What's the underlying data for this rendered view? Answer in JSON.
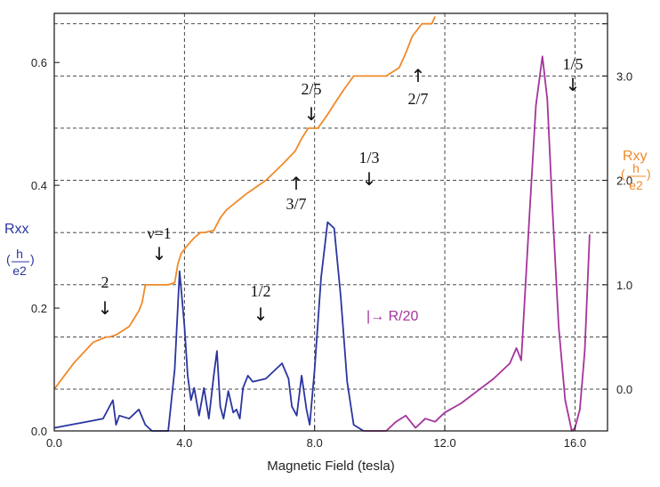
{
  "chart_data": {
    "type": "line",
    "xlabel": "Magnetic Field (tesla)",
    "xlim": [
      0,
      17
    ],
    "x_ticks": [
      "0.0",
      "4.0",
      "8.0",
      "12.0",
      "16.0"
    ],
    "left_axis": {
      "label": "Rxx",
      "unit_num": "h",
      "unit_den": "e2",
      "ylim": [
        0,
        0.68
      ],
      "ticks": [
        "0.0",
        "0.2",
        "0.4",
        "0.6"
      ],
      "color": "#2a35a0"
    },
    "right_axis": {
      "label": "Rxy",
      "unit_num": "h",
      "unit_den": "e2",
      "ylim": [
        -0.4,
        3.6
      ],
      "ticks": [
        "0.0",
        "1.0",
        "2.0",
        "3.0"
      ],
      "color": "#f08a2a"
    },
    "grid": "dashed",
    "series": [
      {
        "name": "Rxy",
        "axis": "right",
        "color": "#f08a2a",
        "x": [
          0,
          0.6,
          1.2,
          1.6,
          1.7,
          1.9,
          2.3,
          2.5,
          2.6,
          2.7,
          2.8,
          2.9,
          3.1,
          3.5,
          3.7,
          3.8,
          3.9,
          4.1,
          4.3,
          4.5,
          4.6,
          4.9,
          5.1,
          5.3,
          5.9,
          6.5,
          7.0,
          7.4,
          7.6,
          7.8,
          8.1,
          8.4,
          8.6,
          8.9,
          9.2,
          9.5,
          9.8,
          10.2,
          10.6,
          10.8,
          11.0,
          11.3,
          11.6,
          11.7
        ],
        "y": [
          0.0,
          0.25,
          0.45,
          0.5,
          0.5,
          0.52,
          0.6,
          0.7,
          0.75,
          0.83,
          1.0,
          1.0,
          1.0,
          1.0,
          1.02,
          1.2,
          1.3,
          1.38,
          1.45,
          1.5,
          1.5,
          1.52,
          1.64,
          1.72,
          1.87,
          2.0,
          2.15,
          2.28,
          2.4,
          2.5,
          2.5,
          2.63,
          2.73,
          2.87,
          3.0,
          3.0,
          3.0,
          3.0,
          3.08,
          3.22,
          3.38,
          3.5,
          3.5,
          3.57
        ]
      },
      {
        "name": "Rxx",
        "axis": "left",
        "color": "#2a35a0",
        "x": [
          0,
          0.5,
          1.0,
          1.5,
          1.8,
          1.9,
          2.0,
          2.3,
          2.6,
          2.8,
          3.0,
          3.5,
          3.7,
          3.85,
          4.0,
          4.1,
          4.2,
          4.3,
          4.45,
          4.6,
          4.75,
          4.9,
          5.0,
          5.1,
          5.2,
          5.35,
          5.5,
          5.6,
          5.7,
          5.8,
          5.95,
          6.1,
          6.5,
          7.0,
          7.2,
          7.3,
          7.45,
          7.6,
          7.75,
          7.85,
          8.0,
          8.2,
          8.4,
          8.6,
          8.8,
          9.0,
          9.2,
          9.5
        ],
        "y": [
          0.005,
          0.01,
          0.015,
          0.02,
          0.05,
          0.01,
          0.025,
          0.02,
          0.035,
          0.01,
          0.0,
          0.0,
          0.1,
          0.26,
          0.17,
          0.09,
          0.05,
          0.07,
          0.025,
          0.07,
          0.02,
          0.09,
          0.13,
          0.04,
          0.02,
          0.065,
          0.03,
          0.035,
          0.02,
          0.07,
          0.09,
          0.08,
          0.085,
          0.11,
          0.085,
          0.04,
          0.025,
          0.09,
          0.035,
          0.01,
          0.1,
          0.25,
          0.34,
          0.33,
          0.22,
          0.08,
          0.01,
          0.0
        ]
      },
      {
        "name": "Rxx/20",
        "axis": "left",
        "color": "#a5339b",
        "x": [
          9.5,
          10.2,
          10.5,
          10.8,
          11.1,
          11.4,
          11.7,
          12.0,
          12.5,
          13.0,
          13.5,
          14.0,
          14.2,
          14.35,
          14.6,
          14.8,
          15.0,
          15.15,
          15.3,
          15.5,
          15.7,
          15.9,
          16.0,
          16.15,
          16.3,
          16.45
        ],
        "y": [
          0.0,
          0.0,
          0.015,
          0.025,
          0.005,
          0.02,
          0.015,
          0.03,
          0.045,
          0.065,
          0.085,
          0.11,
          0.135,
          0.115,
          0.35,
          0.53,
          0.61,
          0.54,
          0.37,
          0.17,
          0.05,
          0.0,
          0.005,
          0.035,
          0.13,
          0.32
        ]
      }
    ],
    "annotations": {
      "nu1": "ν=1",
      "two": "2",
      "half": "1/2",
      "two_fifths": "2/5",
      "three_sevenths": "3/7",
      "one_third": "1/3",
      "two_sevenths": "2/7",
      "one_fifth": "1/5",
      "scale_note": "|→ R/20"
    },
    "arrows": {
      "down": "↓",
      "up": "↑"
    }
  }
}
